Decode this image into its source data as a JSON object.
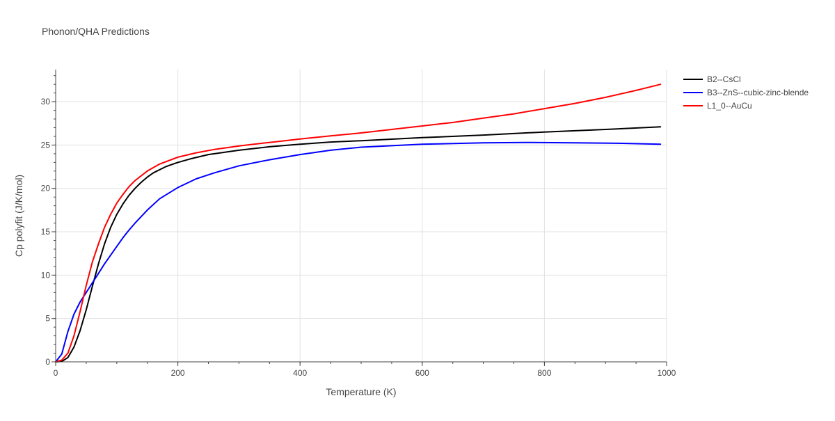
{
  "chart_data": {
    "type": "line",
    "title": "Phonon/QHA Predictions",
    "xlabel": "Temperature (K)",
    "ylabel": "Cp polyfit (J/K/mol)",
    "xlim": [
      0,
      1000
    ],
    "ylim": [
      0,
      33.7
    ],
    "x_ticks": [
      0,
      200,
      400,
      600,
      800,
      1000
    ],
    "y_ticks": [
      0,
      5,
      10,
      15,
      20,
      25,
      30
    ],
    "x_minor_step": 50,
    "y_minor_step": 1,
    "grid": true,
    "legend_position": "top-right outside",
    "series": [
      {
        "name": "B2--CsCl",
        "color": "#000000",
        "x": [
          0,
          10,
          20,
          30,
          40,
          50,
          60,
          70,
          80,
          90,
          100,
          110,
          120,
          130,
          140,
          150,
          160,
          180,
          200,
          220,
          250,
          300,
          350,
          400,
          450,
          500,
          600,
          700,
          800,
          900,
          990
        ],
        "y": [
          0,
          0.05,
          0.5,
          1.7,
          3.6,
          6.0,
          8.7,
          11.3,
          13.6,
          15.5,
          17.0,
          18.2,
          19.2,
          20.0,
          20.7,
          21.3,
          21.8,
          22.5,
          23.0,
          23.4,
          23.9,
          24.4,
          24.8,
          25.1,
          25.35,
          25.5,
          25.85,
          26.15,
          26.5,
          26.8,
          27.1
        ]
      },
      {
        "name": "B3--ZnS--cubic-zinc-blende",
        "color": "#0000ff",
        "x": [
          0,
          10,
          20,
          30,
          40,
          50,
          60,
          70,
          80,
          90,
          100,
          110,
          120,
          130,
          150,
          170,
          200,
          230,
          260,
          300,
          350,
          400,
          450,
          500,
          600,
          700,
          770,
          850,
          920,
          990
        ],
        "y": [
          0,
          0.9,
          3.5,
          5.5,
          6.9,
          8.0,
          9.1,
          10.2,
          11.3,
          12.3,
          13.3,
          14.3,
          15.2,
          16.0,
          17.5,
          18.8,
          20.1,
          21.1,
          21.8,
          22.6,
          23.3,
          23.9,
          24.4,
          24.75,
          25.1,
          25.25,
          25.3,
          25.25,
          25.2,
          25.1
        ]
      },
      {
        "name": "L1_0--AuCu",
        "color": "#ff0000",
        "x": [
          0,
          10,
          20,
          30,
          40,
          50,
          60,
          70,
          80,
          90,
          100,
          110,
          120,
          130,
          150,
          170,
          200,
          230,
          260,
          300,
          350,
          400,
          450,
          500,
          550,
          600,
          650,
          700,
          750,
          800,
          850,
          900,
          950,
          990
        ],
        "y": [
          0,
          0.2,
          1.0,
          3.0,
          5.8,
          8.8,
          11.5,
          13.6,
          15.5,
          17.0,
          18.3,
          19.3,
          20.2,
          20.9,
          22.0,
          22.8,
          23.6,
          24.1,
          24.5,
          24.9,
          25.3,
          25.7,
          26.05,
          26.4,
          26.8,
          27.2,
          27.6,
          28.1,
          28.6,
          29.2,
          29.8,
          30.5,
          31.3,
          32.0
        ]
      }
    ]
  }
}
